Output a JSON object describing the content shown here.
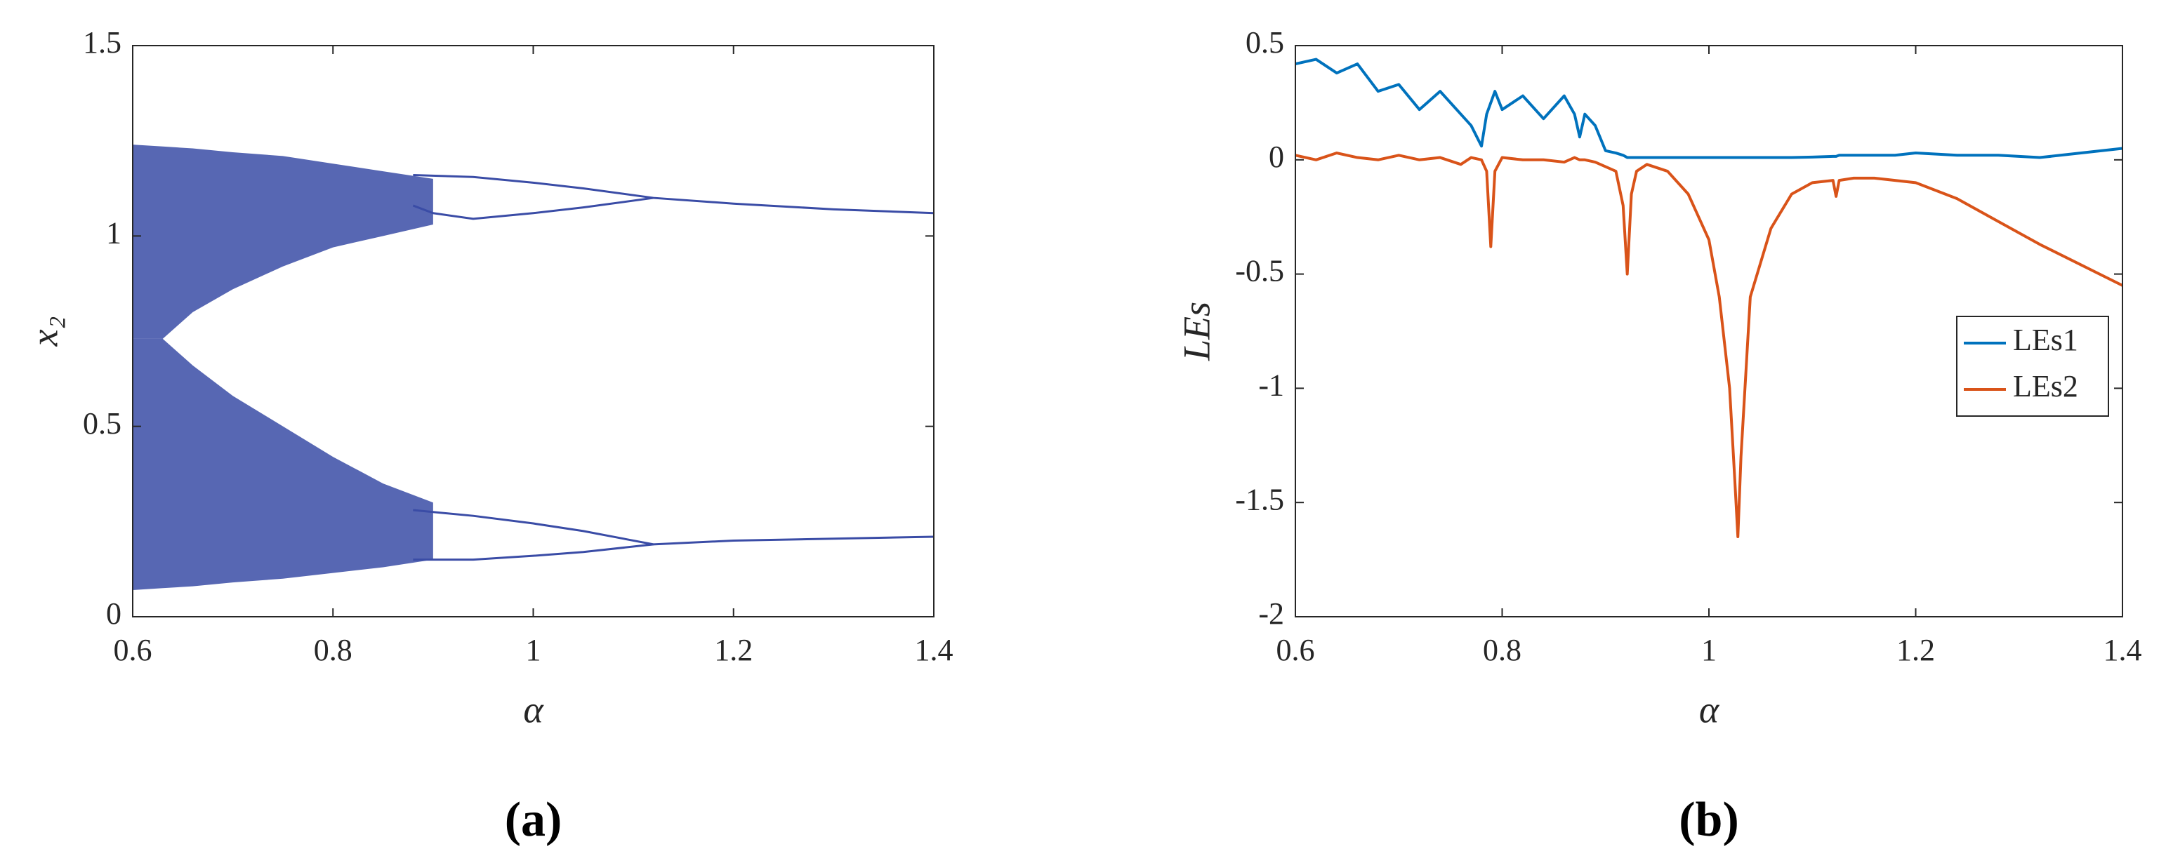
{
  "chart_data": [
    {
      "type": "bifurcation",
      "xlabel": "α",
      "ylabel": "x₂",
      "panel": "(a)",
      "color": "#3a4ca6",
      "xlim": [
        0.6,
        1.4
      ],
      "ylim": [
        0,
        1.5
      ],
      "xticks": [
        0.6,
        0.8,
        1,
        1.2,
        1.4
      ],
      "yticks": [
        0,
        0.5,
        1,
        1.5
      ],
      "bands": [
        {
          "x": [
            0.6,
            0.63,
            0.66,
            0.7,
            0.75,
            0.8,
            0.85,
            0.9
          ],
          "high": [
            1.24,
            1.235,
            1.23,
            1.22,
            1.21,
            1.19,
            1.17,
            1.15
          ],
          "low": [
            0.73,
            0.73,
            0.8,
            0.86,
            0.92,
            0.97,
            1.0,
            1.03
          ]
        },
        {
          "x": [
            0.6,
            0.63,
            0.66,
            0.7,
            0.75,
            0.8,
            0.85,
            0.9
          ],
          "high": [
            0.73,
            0.73,
            0.66,
            0.58,
            0.5,
            0.42,
            0.35,
            0.3
          ],
          "low": [
            0.07,
            0.075,
            0.08,
            0.09,
            0.1,
            0.115,
            0.13,
            0.15
          ]
        }
      ],
      "branches": [
        {
          "x": [
            0.88,
            0.94,
            1.0,
            1.05,
            1.12,
            1.2,
            1.3,
            1.4
          ],
          "values": [
            1.16,
            1.155,
            1.14,
            1.125,
            1.1,
            1.085,
            1.07,
            1.06
          ]
        },
        {
          "x": [
            0.88,
            0.9,
            0.94,
            1.0,
            1.05,
            1.12
          ],
          "values": [
            1.08,
            1.06,
            1.045,
            1.06,
            1.075,
            1.1
          ]
        },
        {
          "x": [
            0.88,
            0.94,
            1.0,
            1.05,
            1.12,
            1.2,
            1.3,
            1.4
          ],
          "values": [
            0.28,
            0.265,
            0.245,
            0.225,
            0.19,
            0.2,
            0.205,
            0.21
          ]
        },
        {
          "x": [
            0.88,
            0.9,
            0.94,
            1.0,
            1.05,
            1.12
          ],
          "values": [
            0.15,
            0.15,
            0.15,
            0.16,
            0.17,
            0.19
          ]
        }
      ]
    },
    {
      "type": "line",
      "xlabel": "α",
      "ylabel": "LEs",
      "panel": "(b)",
      "legend": "east",
      "xlim": [
        0.6,
        1.4
      ],
      "ylim": [
        -2,
        0.5
      ],
      "xticks": [
        0.6,
        0.8,
        1,
        1.2,
        1.4
      ],
      "yticks": [
        -2,
        -1.5,
        -1,
        -0.5,
        0,
        0.5
      ],
      "x": [
        0.6,
        0.62,
        0.64,
        0.66,
        0.68,
        0.7,
        0.72,
        0.74,
        0.76,
        0.77,
        0.78,
        0.785,
        0.789,
        0.793,
        0.8,
        0.82,
        0.84,
        0.86,
        0.87,
        0.875,
        0.88,
        0.89,
        0.9,
        0.91,
        0.917,
        0.921,
        0.925,
        0.93,
        0.94,
        0.96,
        0.98,
        1.0,
        1.01,
        1.02,
        1.025,
        1.028,
        1.031,
        1.04,
        1.06,
        1.08,
        1.1,
        1.12,
        1.123,
        1.126,
        1.14,
        1.16,
        1.18,
        1.2,
        1.24,
        1.28,
        1.32,
        1.36,
        1.4
      ],
      "series": [
        {
          "name": "LEs1",
          "color": "#0072bd",
          "values": [
            0.42,
            0.44,
            0.38,
            0.42,
            0.3,
            0.33,
            0.22,
            0.3,
            0.2,
            0.15,
            0.06,
            0.2,
            0.25,
            0.3,
            0.22,
            0.28,
            0.18,
            0.28,
            0.2,
            0.1,
            0.2,
            0.15,
            0.04,
            0.03,
            0.02,
            0.01,
            0.01,
            0.01,
            0.01,
            0.01,
            0.01,
            0.01,
            0.01,
            0.01,
            0.01,
            0.01,
            0.01,
            0.01,
            0.01,
            0.01,
            0.012,
            0.015,
            0.015,
            0.02,
            0.02,
            0.02,
            0.02,
            0.03,
            0.02,
            0.02,
            0.01,
            0.03,
            0.05
          ]
        },
        {
          "name": "LEs2",
          "color": "#d95319",
          "values": [
            0.02,
            0.0,
            0.03,
            0.01,
            0.0,
            0.02,
            0.0,
            0.01,
            -0.02,
            0.01,
            0.0,
            -0.05,
            -0.38,
            -0.05,
            0.01,
            0.0,
            0.0,
            -0.01,
            0.01,
            0.0,
            0.0,
            -0.01,
            -0.03,
            -0.05,
            -0.2,
            -0.5,
            -0.15,
            -0.05,
            -0.02,
            -0.05,
            -0.15,
            -0.35,
            -0.6,
            -1.0,
            -1.4,
            -1.65,
            -1.3,
            -0.6,
            -0.3,
            -0.15,
            -0.1,
            -0.09,
            -0.16,
            -0.09,
            -0.08,
            -0.08,
            -0.09,
            -0.1,
            -0.17,
            -0.27,
            -0.37,
            -0.46,
            -0.55
          ]
        }
      ]
    }
  ]
}
